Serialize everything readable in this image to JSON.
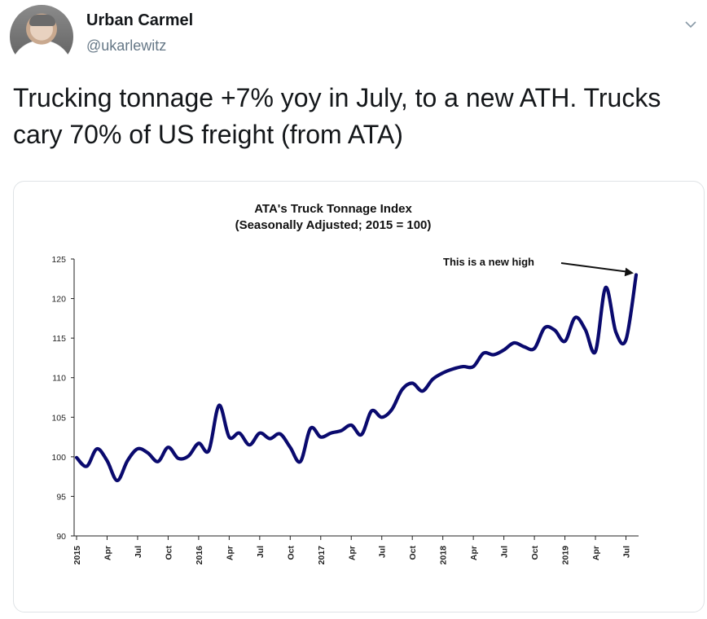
{
  "tweet": {
    "author_name": "Urban Carmel",
    "author_handle": "@ukarlewitz",
    "text": "Trucking tonnage +7% yoy in July, to a new ATH. Trucks cary 70% of US freight (from ATA)",
    "caret_icon": "chevron-down-icon"
  },
  "chart_data": {
    "type": "line",
    "title": "ATA's Truck Tonnage Index",
    "subtitle": "(Seasonally Adjusted; 2015 = 100)",
    "xlabel": "",
    "ylabel": "",
    "ylim": [
      90,
      125
    ],
    "yticks": [
      90,
      95,
      100,
      105,
      110,
      115,
      120,
      125
    ],
    "grid": false,
    "line_color": "#0a0a6e",
    "annotation": "This is a new high",
    "x_tick_labels": [
      "2015",
      "Apr",
      "Jul",
      "Oct",
      "2016",
      "Apr",
      "Jul",
      "Oct",
      "2017",
      "Apr",
      "Jul",
      "Oct",
      "2018",
      "Apr",
      "Jul",
      "Oct",
      "2019",
      "Apr",
      "Jul"
    ],
    "series": [
      {
        "values": [
          99.9,
          98.8,
          101.0,
          99.5,
          97.0,
          99.5,
          101.0,
          100.5,
          99.4,
          101.2,
          99.8,
          100.1,
          101.7,
          100.8,
          106.5,
          102.5,
          103.0,
          101.5,
          103.0,
          102.3,
          102.9,
          101.2,
          99.4,
          103.6,
          102.5,
          103.0,
          103.3,
          104.0,
          102.8,
          105.8,
          105.0,
          106.0,
          108.5,
          109.3,
          108.3,
          109.8,
          110.6,
          111.1,
          111.4,
          111.4,
          113.1,
          112.9,
          113.5,
          114.4,
          113.9,
          113.7,
          116.3,
          116.0,
          114.6,
          117.6,
          116.1,
          113.3,
          121.4,
          115.8,
          114.8,
          123.0
        ]
      }
    ]
  }
}
